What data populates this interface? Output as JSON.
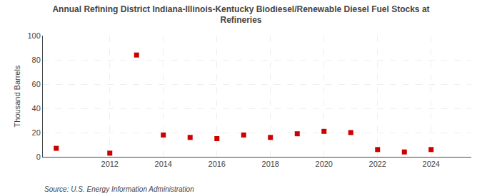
{
  "chart_data": {
    "type": "scatter",
    "title": "Annual Refining District Indiana-Illinois-Kentucky Biodiesel/Renewable Diesel Fuel Stocks at\nRefineries",
    "ylabel": "Thousand Barrels",
    "annotations": [
      "Source: U.S. Energy Information Administration"
    ],
    "x": [
      2010,
      2012,
      2013,
      2014,
      2015,
      2016,
      2017,
      2018,
      2019,
      2020,
      2021,
      2022,
      2023,
      2024
    ],
    "values": [
      7,
      3,
      84,
      18,
      16,
      15,
      18,
      16,
      19,
      21,
      20,
      6,
      4,
      6
    ],
    "xlim": [
      2009.5,
      2025.5
    ],
    "xticks": [
      2012,
      2014,
      2016,
      2018,
      2020,
      2022,
      2024
    ],
    "ylim": [
      0,
      100
    ],
    "yticks": [
      0,
      20,
      40,
      60,
      80,
      100
    ],
    "grid": true,
    "color": "#cc0000",
    "marker": "square"
  }
}
